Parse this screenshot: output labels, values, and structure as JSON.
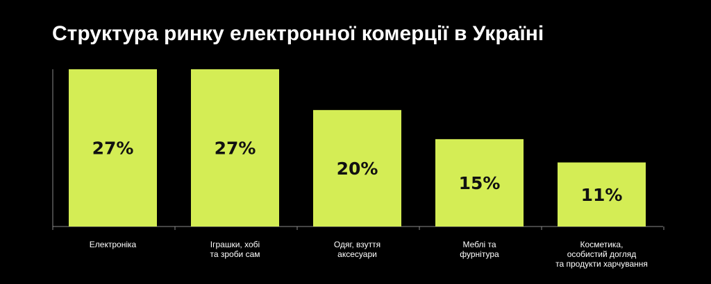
{
  "chart_data": {
    "type": "bar",
    "title": "Структура ринку електронної комерції в Україні",
    "unit": "%",
    "categories": [
      [
        "Електроніка"
      ],
      [
        "Іграшки, хобі",
        "та зроби сам"
      ],
      [
        "Одяг, взуття",
        "аксесуари"
      ],
      [
        "Меблі та",
        "фурнітура"
      ],
      [
        "Косметика,",
        "особистий догляд",
        "та продукти харчування"
      ]
    ],
    "values": [
      27,
      27,
      20,
      15,
      11
    ],
    "value_labels": [
      "27%",
      "27%",
      "20%",
      "15%",
      "11%"
    ],
    "ylim": [
      0,
      27
    ],
    "grid": false,
    "bar_color": "#d4ed55",
    "background": "#000000"
  }
}
